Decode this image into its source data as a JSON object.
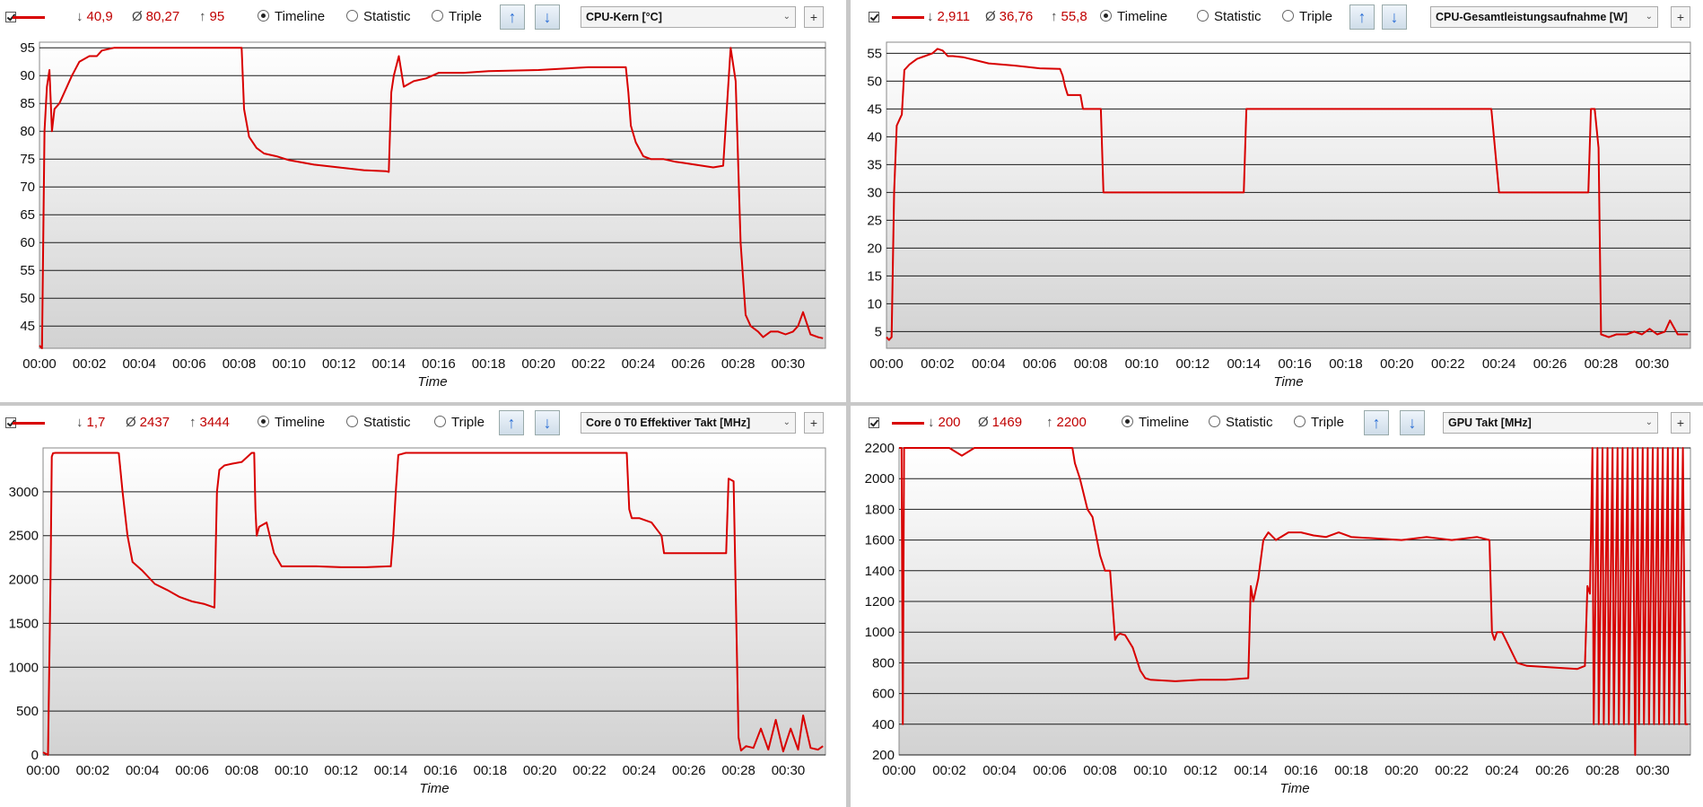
{
  "panels": [
    {
      "min": "40,9",
      "avg": "80,27",
      "max": "95",
      "radio_timeline": "Timeline",
      "radio_statistic": "Statistic",
      "radio_triple": "Triple",
      "sensor": "CPU-Kern [°C]",
      "plus": "+",
      "chart_data": {
        "type": "line",
        "title": "",
        "xlabel": "Time",
        "ylabel": "",
        "ylim": [
          41,
          96
        ],
        "yticks": [
          45,
          50,
          55,
          60,
          65,
          70,
          75,
          80,
          85,
          90,
          95
        ],
        "xlim": [
          0,
          31.5
        ],
        "xticks": [
          "00:00",
          "00:02",
          "00:04",
          "00:06",
          "00:08",
          "00:10",
          "00:12",
          "00:14",
          "00:16",
          "00:18",
          "00:20",
          "00:22",
          "00:24",
          "00:26",
          "00:28",
          "00:30"
        ],
        "series": [
          {
            "color": "#d80000",
            "x": [
              0,
              0.1,
              0.2,
              0.3,
              0.4,
              0.5,
              0.6,
              0.8,
              1,
              1.3,
              1.6,
              2,
              2.3,
              2.5,
              3,
              4,
              5,
              6,
              7,
              7.6,
              8.1,
              8.2,
              8.4,
              8.7,
              9,
              9.5,
              10,
              11,
              12,
              13,
              13.9,
              14,
              14.05,
              14.1,
              14.2,
              14.4,
              14.6,
              15,
              15.5,
              16,
              17,
              18,
              20,
              22,
              23.5,
              23.6,
              23.7,
              23.9,
              24.2,
              24.5,
              25,
              25.5,
              26,
              27,
              27.4,
              27.7,
              27.9,
              28.1,
              28.3,
              28.5,
              28.8,
              29,
              29.3,
              29.6,
              29.9,
              30.2,
              30.4,
              30.6,
              30.9,
              31.2,
              31.4
            ],
            "y": [
              41.5,
              41,
              80,
              88,
              91,
              80,
              84,
              85,
              87,
              90,
              92.5,
              93.5,
              93.5,
              94.5,
              95,
              95,
              95,
              95,
              95,
              95,
              95,
              84,
              79,
              77,
              76,
              75.5,
              74.8,
              74,
              73.5,
              73,
              72.8,
              72.7,
              80,
              87,
              90,
              93.5,
              88,
              89,
              89.5,
              90.5,
              90.5,
              90.8,
              91,
              91.5,
              91.5,
              87,
              81,
              78,
              75.5,
              75,
              75,
              74.5,
              74.2,
              73.5,
              73.8,
              95,
              89,
              60,
              47,
              45,
              44,
              43,
              44,
              44,
              43.5,
              44,
              45,
              47.5,
              43.5,
              43,
              42.8
            ]
          }
        ]
      }
    },
    {
      "min": "2,911",
      "avg": "36,76",
      "max": "55,8",
      "radio_timeline": "Timeline",
      "radio_statistic": "Statistic",
      "radio_triple": "Triple",
      "sensor": "CPU-Gesamtleistungsaufnahme [W]",
      "plus": "+",
      "chart_data": {
        "type": "line",
        "title": "",
        "xlabel": "Time",
        "ylabel": "",
        "ylim": [
          2,
          57
        ],
        "yticks": [
          5,
          10,
          15,
          20,
          25,
          30,
          35,
          40,
          45,
          50,
          55
        ],
        "xlim": [
          0,
          31.5
        ],
        "xticks": [
          "00:00",
          "00:02",
          "00:04",
          "00:06",
          "00:08",
          "00:10",
          "00:12",
          "00:14",
          "00:16",
          "00:18",
          "00:20",
          "00:22",
          "00:24",
          "00:26",
          "00:28",
          "00:30"
        ],
        "series": [
          {
            "color": "#d80000",
            "x": [
              0,
              0.1,
              0.2,
              0.3,
              0.4,
              0.5,
              0.6,
              0.7,
              0.9,
              1.2,
              1.5,
              1.8,
              2,
              2.2,
              2.4,
              2.6,
              3,
              4,
              5,
              6,
              6.8,
              6.9,
              7,
              7.1,
              7.5,
              7.6,
              7.7,
              8.2,
              8.3,
              8.4,
              8.5,
              10,
              12,
              13.9,
              14,
              14.1,
              14.5,
              15,
              18,
              20,
              22,
              23.5,
              23.6,
              23.7,
              24,
              26,
              27,
              27.2,
              27.4,
              27.5,
              27.6,
              27.7,
              27.75,
              27.9,
              28,
              28.3,
              28.6,
              29,
              29.3,
              29.6,
              29.9,
              30.2,
              30.5,
              30.7,
              31,
              31.2,
              31.4
            ],
            "y": [
              4,
              3.5,
              4,
              30,
              42,
              43,
              44,
              52,
              53,
              54,
              54.5,
              55,
              55.8,
              55.5,
              54.5,
              54.5,
              54.3,
              53.2,
              52.8,
              52.3,
              52.2,
              51,
              49,
              47.5,
              47.5,
              47.5,
              45,
              45,
              45,
              45,
              30,
              30,
              30,
              30,
              30,
              45,
              45,
              45,
              45,
              45,
              45,
              45,
              45,
              45,
              30,
              30,
              30,
              30,
              30,
              30,
              45,
              45,
              45,
              38,
              4.5,
              4,
              4.5,
              4.5,
              5,
              4.5,
              5.5,
              4.5,
              5,
              7,
              4.5,
              4.5,
              4.5
            ]
          }
        ]
      }
    },
    {
      "min": "1,7",
      "avg": "2437",
      "max": "3444",
      "radio_timeline": "Timeline",
      "radio_statistic": "Statistic",
      "radio_triple": "Triple",
      "sensor": "Core 0 T0 Effektiver Takt [MHz]",
      "plus": "+",
      "chart_data": {
        "type": "line",
        "title": "",
        "xlabel": "Time",
        "ylabel": "",
        "ylim": [
          0,
          3500
        ],
        "yticks": [
          0,
          500,
          1000,
          1500,
          2000,
          2500,
          3000
        ],
        "xlim": [
          0,
          31.5
        ],
        "xticks": [
          "00:00",
          "00:02",
          "00:04",
          "00:06",
          "00:08",
          "00:10",
          "00:12",
          "00:14",
          "00:16",
          "00:18",
          "00:20",
          "00:22",
          "00:24",
          "00:26",
          "00:28",
          "00:30"
        ],
        "series": [
          {
            "color": "#d80000",
            "x": [
              0,
              0.2,
              0.3,
              0.35,
              0.4,
              0.5,
              0.7,
              1,
              2,
              3,
              3.05,
              3.2,
              3.4,
              3.6,
              3.8,
              4,
              4.5,
              5,
              5.5,
              6,
              6.5,
              6.9,
              7,
              7.1,
              7.3,
              7.6,
              8,
              8.4,
              8.5,
              8.55,
              8.6,
              8.7,
              9,
              9.3,
              9.6,
              10,
              11,
              12,
              13,
              13.9,
              14,
              14.1,
              14.2,
              14.3,
              14.6,
              15,
              17,
              19,
              21,
              23.5,
              23.6,
              23.7,
              24,
              24.5,
              24.9,
              25,
              25.5,
              26,
              27,
              27.5,
              27.6,
              27.8,
              28,
              28.1,
              28.3,
              28.6,
              28.9,
              29.2,
              29.5,
              29.8,
              30.1,
              30.4,
              30.6,
              30.9,
              31.2,
              31.4
            ],
            "y": [
              30,
              0,
              2000,
              3400,
              3440,
              3444,
              3444,
              3444,
              3444,
              3444,
              3440,
              3000,
              2500,
              2200,
              2150,
              2100,
              1950,
              1880,
              1800,
              1750,
              1720,
              1680,
              3000,
              3250,
              3300,
              3320,
              3340,
              3444,
              3444,
              2800,
              2500,
              2600,
              2650,
              2300,
              2150,
              2150,
              2150,
              2140,
              2140,
              2150,
              2150,
              2500,
              3000,
              3420,
              3444,
              3444,
              3444,
              3444,
              3444,
              3444,
              2800,
              2700,
              2700,
              2650,
              2500,
              2300,
              2300,
              2300,
              2300,
              2300,
              3150,
              3120,
              200,
              50,
              100,
              80,
              300,
              60,
              400,
              40,
              300,
              60,
              450,
              80,
              60,
              100
            ]
          }
        ]
      }
    },
    {
      "min": "200",
      "avg": "1469",
      "max": "2200",
      "radio_timeline": "Timeline",
      "radio_statistic": "Statistic",
      "radio_triple": "Triple",
      "sensor": "GPU Takt [MHz]",
      "plus": "+",
      "chart_data": {
        "type": "line",
        "title": "",
        "xlabel": "Time",
        "ylabel": "",
        "ylim": [
          200,
          2200
        ],
        "yticks": [
          200,
          400,
          600,
          800,
          1000,
          1200,
          1400,
          1600,
          1800,
          2000,
          2200
        ],
        "xlim": [
          0,
          31.5
        ],
        "xticks": [
          "00:00",
          "00:02",
          "00:04",
          "00:06",
          "00:08",
          "00:10",
          "00:12",
          "00:14",
          "00:16",
          "00:18",
          "00:20",
          "00:22",
          "00:24",
          "00:26",
          "00:28",
          "00:30"
        ],
        "series": [
          {
            "color": "#d80000",
            "x": [
              0,
              0.1,
              0.15,
              0.2,
              0.3,
              1,
              2,
              2.5,
              3,
              3.5,
              4,
              5,
              6,
              6.9,
              7,
              7.2,
              7.5,
              7.7,
              8,
              8.2,
              8.4,
              8.6,
              8.7,
              8.8,
              9,
              9.3,
              9.6,
              9.8,
              10,
              11,
              12,
              13,
              13.9,
              14,
              14.1,
              14.3,
              14.5,
              14.7,
              15,
              15.5,
              16,
              16.5,
              17,
              17.5,
              18,
              19,
              20,
              21,
              22,
              23,
              23.5,
              23.6,
              23.7,
              23.8,
              24,
              24.3,
              24.6,
              25,
              26,
              27,
              27.3,
              27.4,
              27.5,
              27.6,
              27.65,
              27.8,
              27.85,
              28.0,
              28.05,
              28.2,
              28.25,
              28.4,
              28.45,
              28.6,
              28.65,
              28.8,
              28.85,
              29.0,
              29.05,
              29.2,
              29.3,
              29.4,
              29.45,
              29.6,
              29.65,
              29.8,
              29.85,
              30.0,
              30.05,
              30.2,
              30.25,
              30.4,
              30.45,
              30.6,
              30.65,
              30.8,
              30.85,
              31.0,
              31.05,
              31.2,
              31.3,
              31.4
            ],
            "y": [
              2200,
              2200,
              400,
              2200,
              2200,
              2200,
              2200,
              2150,
              2200,
              2200,
              2200,
              2200,
              2200,
              2200,
              2100,
              2000,
              1800,
              1750,
              1500,
              1400,
              1400,
              950,
              980,
              990,
              980,
              900,
              750,
              700,
              690,
              680,
              690,
              690,
              700,
              1300,
              1200,
              1350,
              1600,
              1650,
              1600,
              1650,
              1650,
              1630,
              1620,
              1650,
              1620,
              1610,
              1600,
              1620,
              1600,
              1620,
              1600,
              1000,
              950,
              1000,
              1000,
              900,
              800,
              780,
              770,
              760,
              780,
              1300,
              1250,
              2200,
              400,
              2200,
              400,
              2200,
              400,
              2200,
              400,
              2200,
              400,
              2200,
              400,
              2200,
              400,
              2200,
              400,
              2200,
              200,
              2200,
              400,
              2200,
              400,
              2200,
              400,
              2200,
              400,
              2200,
              400,
              2200,
              400,
              2200,
              400,
              2200,
              400,
              2200,
              400,
              2200,
              400,
              400
            ]
          }
        ]
      }
    }
  ]
}
